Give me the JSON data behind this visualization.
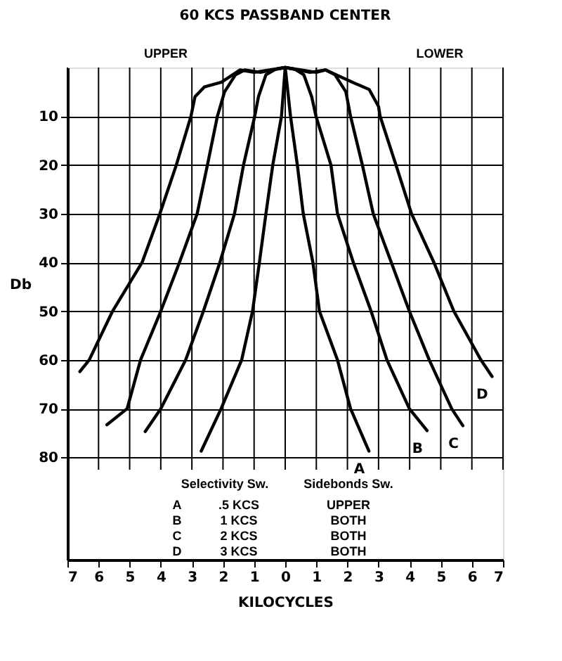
{
  "chart_data": {
    "type": "line",
    "title": "60 KCS PASSBAND CENTER",
    "xlabel": "KILOCYCLES",
    "ylabel": "Db",
    "annotations": [
      "UPPER",
      "LOWER",
      "Selectivity Sw.",
      "Sidebonds Sw.",
      "A",
      ".5 KCS",
      "UPPER",
      "B",
      "1 KCS",
      "BOTH",
      "C",
      "2 KCS",
      "BOTH",
      "D",
      "3 KCS",
      "BOTH"
    ],
    "xlim": [
      -7,
      7
    ],
    "ylim": [
      101,
      0
    ],
    "xticks": [
      {
        "value": -7,
        "label": "7"
      },
      {
        "value": -6,
        "label": "6"
      },
      {
        "value": -5,
        "label": "5"
      },
      {
        "value": -4,
        "label": "4"
      },
      {
        "value": -3,
        "label": "3"
      },
      {
        "value": -2,
        "label": "2"
      },
      {
        "value": -1,
        "label": "1"
      },
      0,
      1,
      2,
      3,
      4,
      5,
      6,
      7
    ],
    "yticks": [
      10,
      20,
      30,
      40,
      50,
      60,
      70,
      80
    ],
    "grid": true,
    "legend": false,
    "marker": "none",
    "line_style": "solid",
    "series": [
      {
        "name": "A",
        "color": "#000000",
        "x": [
          -2.7,
          -2.06,
          -1.4,
          -1.05,
          -0.83,
          -0.62,
          -0.4,
          -0.12,
          0,
          0.17,
          0.39,
          0.58,
          0.89,
          1.1,
          1.68,
          2.1,
          2.69
        ],
        "values": [
          78.7,
          70,
          60,
          50,
          40,
          30,
          20,
          10,
          0,
          10,
          20,
          30,
          40,
          50,
          60,
          70,
          78.7
        ]
      },
      {
        "name": "B",
        "color": "#000000",
        "x": [
          -4.5,
          -4.0,
          -3.2,
          -2.63,
          -2.1,
          -1.63,
          -1.34,
          -0.98,
          -0.86,
          -0.62,
          -0.3,
          0,
          0.3,
          0.6,
          0.85,
          0.99,
          1.47,
          1.68,
          2.19,
          2.76,
          3.27,
          3.99,
          4.56
        ],
        "values": [
          74.7,
          70,
          60,
          50,
          40,
          30,
          20,
          10,
          6,
          1.5,
          0.3,
          0,
          0.3,
          1.5,
          6,
          10,
          20,
          30,
          40,
          50,
          60,
          70,
          74.5
        ]
      },
      {
        "name": "C",
        "color": "#000000",
        "x": [
          -5.73,
          -5.08,
          -4.65,
          -4.0,
          -3.4,
          -2.83,
          -2.5,
          -2.18,
          -1.95,
          -1.6,
          -1.3,
          -0.8,
          0,
          0.8,
          1.3,
          1.6,
          1.95,
          2.1,
          2.48,
          2.83,
          3.41,
          3.99,
          4.63,
          5.35,
          5.71
        ],
        "values": [
          73.3,
          70,
          60,
          50,
          40,
          30,
          20,
          10,
          5,
          1.5,
          0.5,
          1,
          0,
          1,
          0.5,
          1.5,
          5,
          10,
          20,
          30,
          40,
          50,
          60,
          70,
          73.5
        ]
      },
      {
        "name": "D",
        "color": "#000000",
        "x": [
          -6.6,
          -6.3,
          -5.55,
          -4.6,
          -4.03,
          -3.5,
          -3.03,
          -2.9,
          -2.6,
          -2.05,
          -1.45,
          -1.0,
          0,
          1.0,
          1.3,
          2.15,
          2.7,
          3.0,
          3.05,
          3.56,
          4.06,
          4.78,
          5.42,
          6.29,
          6.65
        ],
        "values": [
          62.4,
          60,
          50,
          40,
          30,
          20,
          10,
          6,
          4,
          3,
          0.5,
          1,
          0,
          1,
          0.5,
          3,
          4.5,
          8,
          10,
          20,
          30,
          40,
          50,
          60,
          63.4
        ]
      }
    ]
  }
}
